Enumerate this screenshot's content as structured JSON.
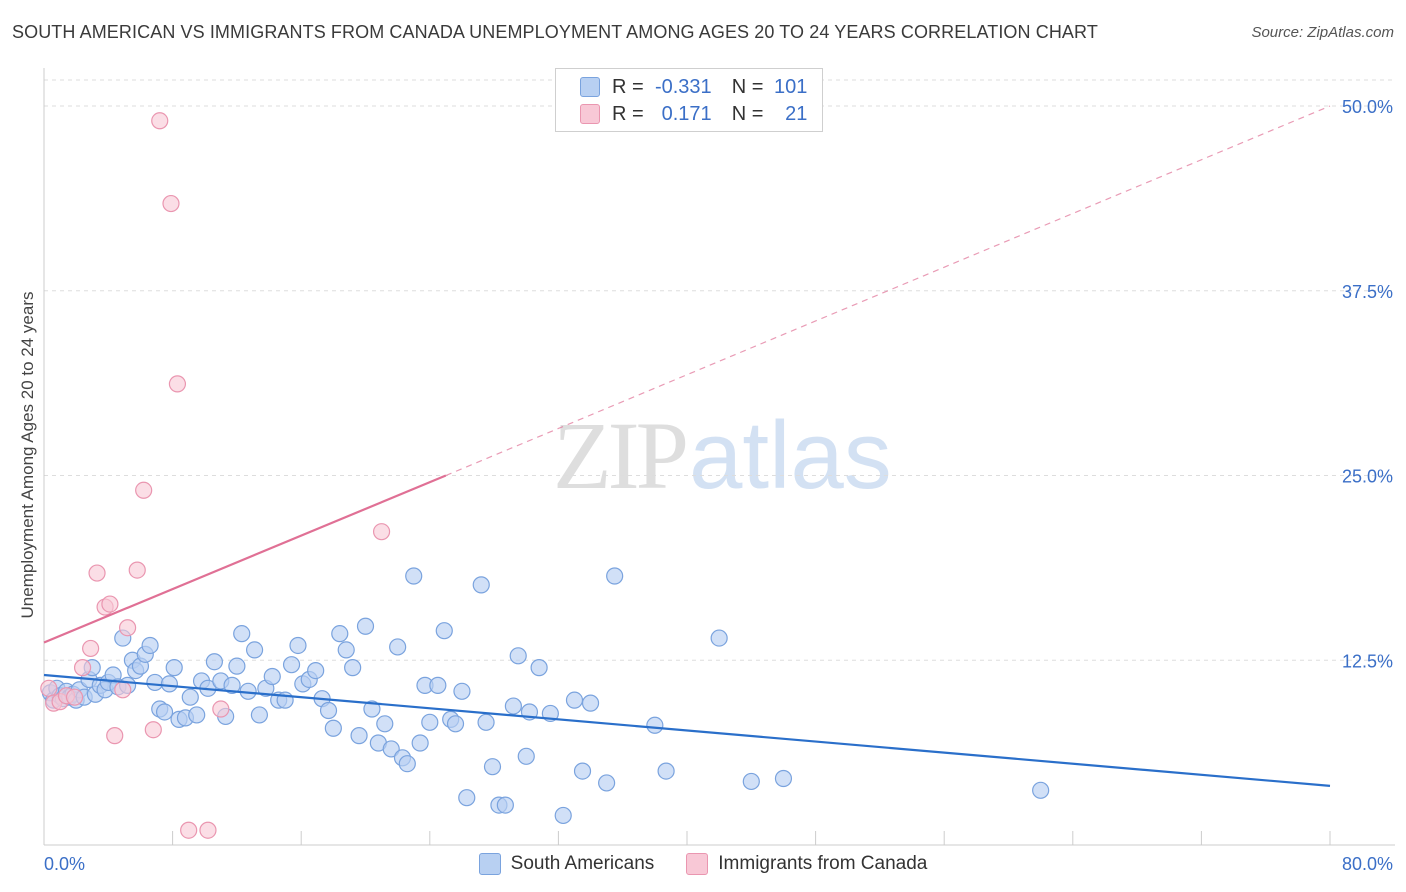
{
  "header": {
    "title": "SOUTH AMERICAN VS IMMIGRANTS FROM CANADA UNEMPLOYMENT AMONG AGES 20 TO 24 YEARS CORRELATION CHART",
    "source": "Source: ZipAtlas.com"
  },
  "watermark": {
    "zip": "ZIP",
    "atlas": "atlas"
  },
  "legend": {
    "r_label": "R =",
    "n_label": "N =",
    "rows": [
      {
        "r": "-0.331",
        "n": "101"
      },
      {
        "r": "0.171",
        "n": "21"
      }
    ]
  },
  "colors": {
    "blue_fill": "#b8d0f2",
    "blue_stroke": "#7aa3de",
    "blue_line": "#2a6fca",
    "pink_fill": "#f8c8d6",
    "pink_stroke": "#ea96b0",
    "pink_line": "#e07095",
    "axis_text": "#3b6fc7",
    "grid": "#dddddd"
  },
  "chart_data": {
    "type": "scatter",
    "title": "SOUTH AMERICAN VS IMMIGRANTS FROM CANADA UNEMPLOYMENT AMONG AGES 20 TO 24 YEARS CORRELATION CHART",
    "xlabel": "",
    "ylabel": "Unemployment Among Ages 20 to 24 years",
    "xlim": [
      0,
      80
    ],
    "ylim": [
      0,
      50
    ],
    "x_tick_labels": [
      "0.0%",
      "80.0%"
    ],
    "y_ticks": [
      12.5,
      25.0,
      37.5,
      50.0
    ],
    "y_tick_labels": [
      "12.5%",
      "25.0%",
      "37.5%",
      "50.0%"
    ],
    "grid": true,
    "series": [
      {
        "name": "South Americans",
        "r": -0.331,
        "n": 101,
        "trend": {
          "x0": 0,
          "y0": 11.5,
          "x1": 80,
          "y1": 4.0
        },
        "points": [
          [
            0.4,
            10.3
          ],
          [
            0.6,
            9.8
          ],
          [
            0.8,
            10.6
          ],
          [
            1.0,
            10.1
          ],
          [
            1.2,
            9.9
          ],
          [
            1.4,
            10.4
          ],
          [
            1.6,
            10.0
          ],
          [
            1.8,
            10.2
          ],
          [
            2.0,
            9.8
          ],
          [
            2.2,
            10.5
          ],
          [
            2.5,
            10.0
          ],
          [
            2.8,
            11.2
          ],
          [
            3.0,
            12.0
          ],
          [
            3.2,
            10.2
          ],
          [
            3.5,
            10.8
          ],
          [
            3.8,
            10.5
          ],
          [
            4.0,
            11.0
          ],
          [
            4.3,
            11.5
          ],
          [
            4.6,
            10.7
          ],
          [
            4.9,
            14.0
          ],
          [
            5.2,
            10.8
          ],
          [
            5.5,
            12.5
          ],
          [
            5.7,
            11.8
          ],
          [
            6.0,
            12.1
          ],
          [
            6.3,
            12.9
          ],
          [
            6.6,
            13.5
          ],
          [
            6.9,
            11.0
          ],
          [
            7.2,
            9.2
          ],
          [
            7.5,
            9.0
          ],
          [
            7.8,
            10.9
          ],
          [
            8.1,
            12.0
          ],
          [
            8.4,
            8.5
          ],
          [
            8.8,
            8.6
          ],
          [
            9.1,
            10.0
          ],
          [
            9.5,
            8.8
          ],
          [
            9.8,
            11.1
          ],
          [
            10.2,
            10.6
          ],
          [
            10.6,
            12.4
          ],
          [
            11.0,
            11.1
          ],
          [
            11.3,
            8.7
          ],
          [
            11.7,
            10.8
          ],
          [
            12.0,
            12.1
          ],
          [
            12.3,
            14.3
          ],
          [
            12.7,
            10.4
          ],
          [
            13.1,
            13.2
          ],
          [
            13.4,
            8.8
          ],
          [
            13.8,
            10.6
          ],
          [
            14.2,
            11.4
          ],
          [
            14.6,
            9.8
          ],
          [
            15.0,
            9.8
          ],
          [
            15.4,
            12.2
          ],
          [
            15.8,
            13.5
          ],
          [
            16.1,
            10.9
          ],
          [
            16.5,
            11.2
          ],
          [
            16.9,
            11.8
          ],
          [
            17.3,
            9.9
          ],
          [
            17.7,
            9.1
          ],
          [
            18.0,
            7.9
          ],
          [
            18.4,
            14.3
          ],
          [
            18.8,
            13.2
          ],
          [
            19.2,
            12.0
          ],
          [
            19.6,
            7.4
          ],
          [
            20.0,
            14.8
          ],
          [
            20.4,
            9.2
          ],
          [
            20.8,
            6.9
          ],
          [
            21.2,
            8.2
          ],
          [
            21.6,
            6.5
          ],
          [
            22.0,
            13.4
          ],
          [
            22.3,
            5.9
          ],
          [
            22.6,
            5.5
          ],
          [
            23.0,
            18.2
          ],
          [
            23.4,
            6.9
          ],
          [
            23.7,
            10.8
          ],
          [
            24.0,
            8.3
          ],
          [
            24.5,
            10.8
          ],
          [
            24.9,
            14.5
          ],
          [
            25.3,
            8.5
          ],
          [
            25.6,
            8.2
          ],
          [
            26.0,
            10.4
          ],
          [
            26.3,
            3.2
          ],
          [
            27.2,
            17.6
          ],
          [
            27.5,
            8.3
          ],
          [
            27.9,
            5.3
          ],
          [
            28.3,
            2.7
          ],
          [
            28.7,
            2.7
          ],
          [
            29.2,
            9.4
          ],
          [
            29.5,
            12.8
          ],
          [
            30.0,
            6.0
          ],
          [
            30.2,
            9.0
          ],
          [
            30.8,
            12.0
          ],
          [
            31.5,
            8.9
          ],
          [
            32.3,
            2.0
          ],
          [
            33.0,
            9.8
          ],
          [
            33.5,
            5.0
          ],
          [
            34.0,
            9.6
          ],
          [
            35.0,
            4.2
          ],
          [
            35.5,
            18.2
          ],
          [
            38.0,
            8.1
          ],
          [
            38.7,
            5.0
          ],
          [
            42.0,
            14.0
          ],
          [
            44.0,
            4.3
          ],
          [
            46.0,
            4.5
          ],
          [
            62.0,
            3.7
          ]
        ]
      },
      {
        "name": "Immigrants from Canada",
        "r": 0.171,
        "n": 21,
        "trend": {
          "x0": 0,
          "y0": 13.7,
          "x1": 25,
          "y1": 25.0,
          "dash_x1": 80,
          "dash_y1": 50.0
        },
        "points": [
          [
            0.3,
            10.6
          ],
          [
            0.6,
            9.6
          ],
          [
            1.0,
            9.7
          ],
          [
            1.4,
            10.1
          ],
          [
            1.9,
            10.0
          ],
          [
            2.4,
            12.0
          ],
          [
            2.9,
            13.3
          ],
          [
            3.3,
            18.4
          ],
          [
            3.8,
            16.1
          ],
          [
            4.1,
            16.3
          ],
          [
            4.4,
            7.4
          ],
          [
            4.9,
            10.5
          ],
          [
            5.2,
            14.7
          ],
          [
            5.8,
            18.6
          ],
          [
            6.2,
            24.0
          ],
          [
            6.8,
            7.8
          ],
          [
            7.2,
            49.0
          ],
          [
            7.9,
            43.4
          ],
          [
            8.3,
            31.2
          ],
          [
            9.0,
            1.0
          ],
          [
            10.2,
            1.0
          ],
          [
            11.0,
            9.2
          ],
          [
            21.0,
            21.2
          ]
        ]
      }
    ]
  },
  "bottom_legend": {
    "items": [
      {
        "label": "South Americans"
      },
      {
        "label": "Immigrants from Canada"
      }
    ]
  }
}
